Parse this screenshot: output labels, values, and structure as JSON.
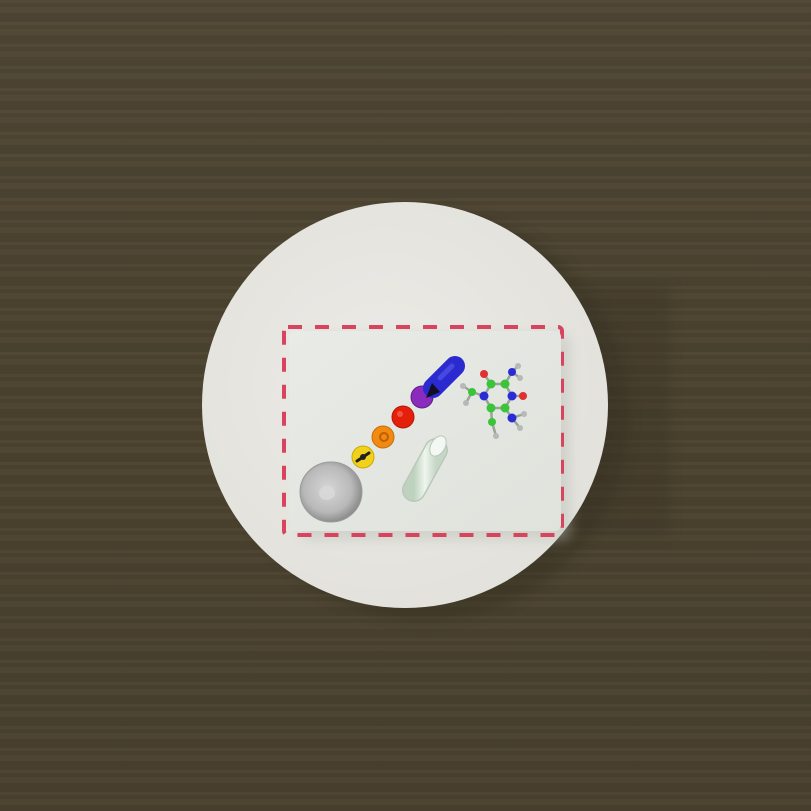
{
  "scene": {
    "table_color": "#4c4431",
    "plate_color": "#e7e6e1",
    "tray_color": "#e4e7e1",
    "tray_border_color": "#d8445e",
    "objects": [
      {
        "name": "plate",
        "icon": "round-plate"
      },
      {
        "name": "tray",
        "icon": "rectangular-tray"
      },
      {
        "name": "silver-disc",
        "icon": "grey-disc",
        "color": "#bdbdbd"
      },
      {
        "name": "yellow-bead",
        "icon": "yellow-bead",
        "color": "#f0d21a"
      },
      {
        "name": "orange-bead",
        "icon": "orange-bead",
        "color": "#f08a12"
      },
      {
        "name": "red-bead",
        "icon": "red-bead",
        "color": "#e5200a"
      },
      {
        "name": "purple-bead",
        "icon": "purple-bead",
        "color": "#8a2bbd"
      },
      {
        "name": "blue-capsule",
        "icon": "blue-capsule",
        "color": "#2a2ad0"
      },
      {
        "name": "glass-vial",
        "icon": "glass-vial",
        "color": "#d8e6d8"
      },
      {
        "name": "molecule-model",
        "icon": "ball-and-stick-molecule"
      }
    ]
  }
}
